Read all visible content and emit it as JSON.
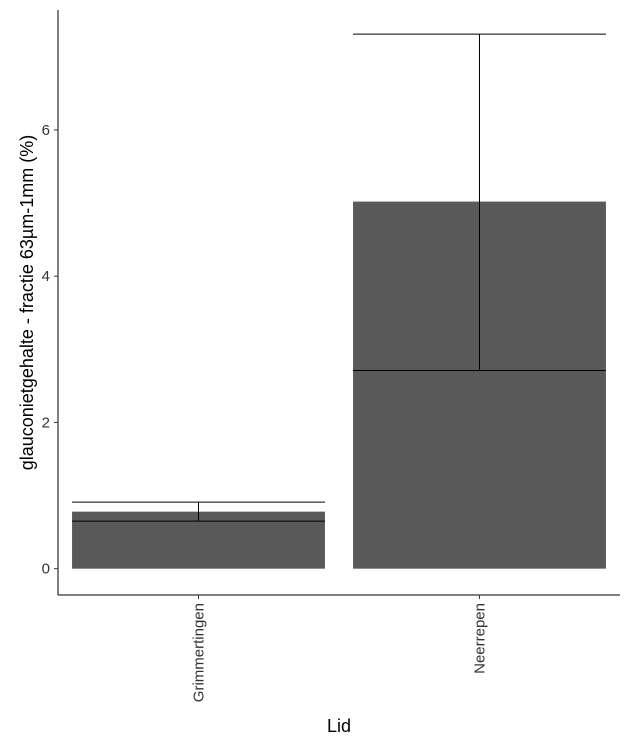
{
  "chart_data": {
    "type": "bar",
    "title": "",
    "xlabel": "Lid",
    "ylabel": "glauconietgehalte - fractie 63µm-1mm (%)",
    "categories": [
      "Grimmertingen",
      "Neerrepen"
    ],
    "values": [
      0.78,
      5.02
    ],
    "error_bars": [
      {
        "low": 0.65,
        "high": 0.91
      },
      {
        "low": 2.71,
        "high": 7.31
      }
    ],
    "ylim": [
      -0.36,
      7.64
    ],
    "yticks": [
      "0",
      "2",
      "4",
      "6"
    ],
    "bar_color": "#595959",
    "grid": false,
    "legend": "none"
  }
}
